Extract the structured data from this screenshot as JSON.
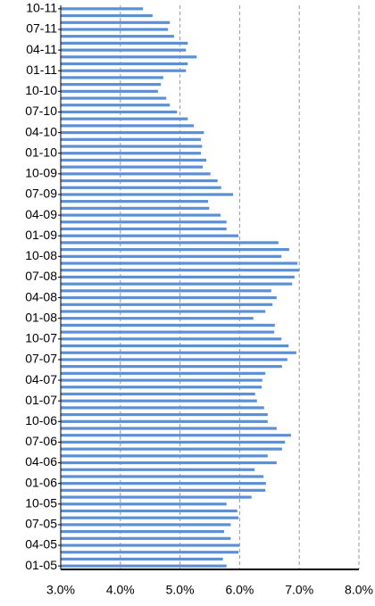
{
  "chart_data": {
    "type": "bar",
    "orientation": "horizontal",
    "color": "#5b8fd6",
    "categories": [
      "01-05",
      null,
      null,
      "04-05",
      null,
      null,
      "07-05",
      null,
      null,
      "10-05",
      null,
      null,
      "01-06",
      null,
      null,
      "04-06",
      null,
      null,
      "07-06",
      null,
      null,
      "10-06",
      null,
      null,
      "01-07",
      null,
      null,
      "04-07",
      null,
      null,
      "07-07",
      null,
      null,
      "10-07",
      null,
      null,
      "01-08",
      null,
      null,
      "04-08",
      null,
      null,
      "07-08",
      null,
      null,
      "10-08",
      null,
      null,
      "01-09",
      null,
      null,
      "04-09",
      null,
      null,
      "07-09",
      null,
      null,
      "10-09",
      null,
      null,
      "01-10",
      null,
      null,
      "04-10",
      null,
      null,
      "07-10",
      null,
      null,
      "10-10",
      null,
      null,
      "01-11",
      null,
      null,
      "04-11",
      null,
      null,
      "07-11",
      null,
      null,
      "10-11"
    ],
    "values": [
      5.78,
      5.72,
      5.98,
      6.0,
      5.85,
      5.74,
      5.85,
      5.98,
      5.96,
      5.78,
      6.2,
      6.43,
      6.44,
      6.4,
      6.25,
      6.62,
      6.47,
      6.71,
      6.76,
      6.86,
      6.62,
      6.47,
      6.47,
      6.41,
      6.29,
      6.26,
      6.37,
      6.38,
      6.43,
      6.71,
      6.8,
      6.95,
      6.82,
      6.7,
      6.58,
      6.59,
      6.23,
      6.43,
      6.55,
      6.62,
      6.53,
      6.88,
      6.92,
      7.0,
      6.97,
      6.7,
      6.83,
      6.65,
      5.98,
      5.78,
      5.78,
      5.68,
      5.49,
      5.47,
      5.89,
      5.69,
      5.63,
      5.51,
      5.38,
      5.44,
      5.35,
      5.37,
      5.35,
      5.4,
      5.23,
      5.13,
      4.95,
      4.83,
      4.77,
      4.63,
      4.68,
      4.72,
      5.1,
      5.13,
      5.28,
      5.1,
      5.13,
      4.9,
      4.8,
      4.83,
      4.54,
      4.38
    ],
    "xlim": [
      3,
      8
    ],
    "xticks": [
      {
        "value": 3,
        "label": "3.0%"
      },
      {
        "value": 4,
        "label": "4.0%"
      },
      {
        "value": 5,
        "label": "5.0%"
      },
      {
        "value": 6,
        "label": "6.0%"
      },
      {
        "value": 7,
        "label": "7.0%"
      },
      {
        "value": 8,
        "label": "8.0%"
      }
    ],
    "grid": true
  }
}
